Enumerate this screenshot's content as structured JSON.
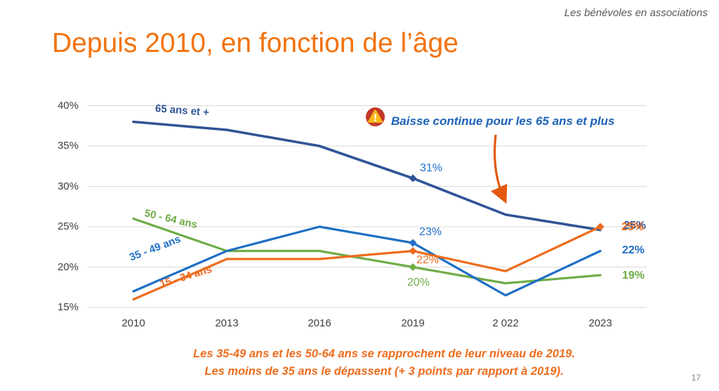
{
  "header": {
    "text": "Les bénévoles en associations"
  },
  "title": {
    "text": "Depuis 2010, en fonction de l’âge"
  },
  "annotation": {
    "icon": "warning-triangle-in-red-circle",
    "text": "Baisse continue pour les 65 ans et plus"
  },
  "footnote": {
    "line1": "Les 35-49 ans et les 50-64 ans se rapprochent de leur niveau de 2019.",
    "line2": "Les moins de 35 ans le dépassent (+ 3 points par rapport à 2019)."
  },
  "page_number": "17",
  "palette": {
    "navy": "#2F5496",
    "blue": "#1E6FC5",
    "green": "#6FAC46",
    "orange": "#EE6C1D",
    "title_orange": "#F3720D",
    "annotation_blue": "#1C63B8",
    "arrow_orange": "#E2590E",
    "grid": "#D9D9D9",
    "axis_text": "#3F3F3F",
    "header_gray": "#595959",
    "page_number_gray": "#808080"
  },
  "chart_data": {
    "type": "line",
    "title": "",
    "x": [
      "2010",
      "2013",
      "2016",
      "2019",
      "2 022",
      "2023"
    ],
    "yticks": [
      "15%",
      "20%",
      "25%",
      "30%",
      "35%",
      "40%"
    ],
    "ylim": [
      15,
      40
    ],
    "grid": true,
    "legend_position": "inline-labels-on-lines",
    "series": [
      {
        "name": "65 ans et +",
        "color": "#2F5496",
        "width": 3.6,
        "values": [
          38,
          37,
          35,
          31,
          26.5,
          24.6
        ],
        "marker_points": [
          3
        ],
        "point_labels": {
          "2019": "31%",
          "2023": "25%"
        }
      },
      {
        "name": "50 - 64 ans",
        "color": "#6FAC46",
        "width": 3.2,
        "values": [
          26,
          22,
          22,
          20,
          18,
          19
        ],
        "marker_points": [
          3
        ],
        "point_labels": {
          "2019": "20%",
          "2023": "19%"
        }
      },
      {
        "name": "35 - 49 ans",
        "color": "#1E6FC5",
        "width": 3.2,
        "values": [
          17,
          22,
          25,
          23,
          16.5,
          22
        ],
        "marker_points": [
          3
        ],
        "point_labels": {
          "2019": "23%",
          "2023": "22%"
        }
      },
      {
        "name": "15 - 34 ans",
        "color": "#EE6C1D",
        "width": 3.2,
        "values": [
          16,
          21,
          21,
          22,
          19.5,
          25
        ],
        "marker_points": [
          3,
          5
        ],
        "point_labels": {
          "2019": "22%",
          "2023": "25%"
        }
      }
    ]
  }
}
